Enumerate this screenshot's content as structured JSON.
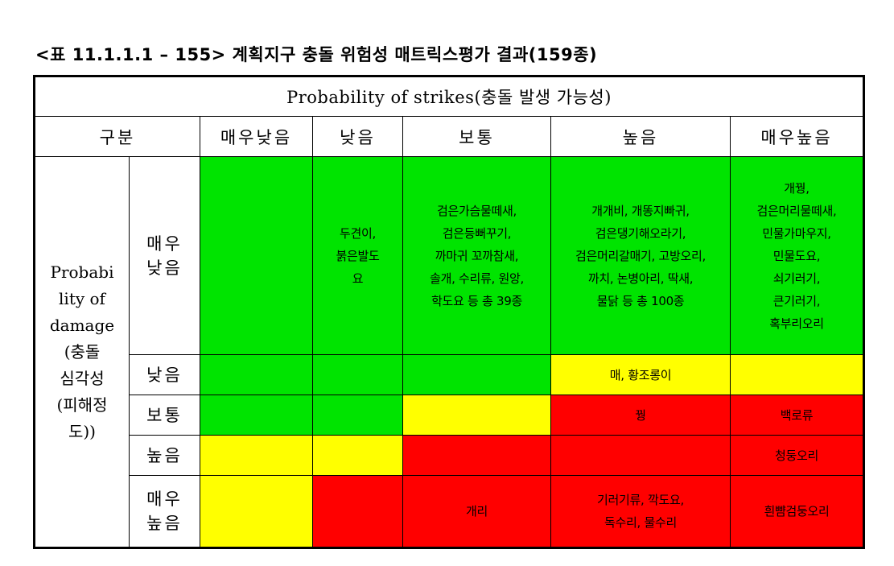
{
  "title": "<표 11.1.1.1 – 155> 계획지구 충돌 위험성 매트릭스평가 결과(159종)",
  "probability_header": "Probability of strikes(충돌 발생 가능성)",
  "corner_label": "구분",
  "columns": [
    "매우낮음",
    "낮음",
    "보통",
    "높음",
    "매우높음"
  ],
  "damage_header": "Probabi\nlity of\ndamage\n(충돌\n심각성\n(피해정\n도))",
  "rows": [
    {
      "label": "매우\n낮음",
      "cells": [
        {
          "text": "",
          "color": "#00e400"
        },
        {
          "text": "두견이,\n붉은발도\n요",
          "color": "#00e400"
        },
        {
          "text": "검은가슴물떼새,\n검은등뻐꾸기,\n까마귀 꼬까참새,\n솔개, 수리류, 원앙,\n학도요 등 총 39종",
          "color": "#00e400"
        },
        {
          "text": "개개비, 개똥지빠귀,\n검은댕기해오라기,\n검은머리갈매기, 고방오리,\n까치, 논병아리, 딱새,\n물닭 등 총 100종",
          "color": "#00e400"
        },
        {
          "text": "개꿩,\n검은머리물떼새,\n민물가마우지,\n민물도요,\n쇠기러기,\n큰기러기,\n혹부리오리",
          "color": "#00e400"
        }
      ]
    },
    {
      "label": "낮음",
      "cells": [
        {
          "text": "",
          "color": "#00e400"
        },
        {
          "text": "",
          "color": "#00e400"
        },
        {
          "text": "",
          "color": "#00e400"
        },
        {
          "text": "매, 황조롱이",
          "color": "#ffff00"
        },
        {
          "text": "",
          "color": "#ffff00"
        }
      ]
    },
    {
      "label": "보통",
      "cells": [
        {
          "text": "",
          "color": "#00e400"
        },
        {
          "text": "",
          "color": "#00e400"
        },
        {
          "text": "",
          "color": "#ffff00"
        },
        {
          "text": "꿩",
          "color": "#ff0000"
        },
        {
          "text": "백로류",
          "color": "#ff0000"
        }
      ]
    },
    {
      "label": "높음",
      "cells": [
        {
          "text": "",
          "color": "#ffff00"
        },
        {
          "text": "",
          "color": "#ffff00"
        },
        {
          "text": "",
          "color": "#ff0000"
        },
        {
          "text": "",
          "color": "#ff0000"
        },
        {
          "text": "청둥오리",
          "color": "#ff0000"
        }
      ]
    },
    {
      "label": "매우\n높음",
      "cells": [
        {
          "text": "",
          "color": "#ffff00"
        },
        {
          "text": "",
          "color": "#ff0000"
        },
        {
          "text": "개리",
          "color": "#ff0000"
        },
        {
          "text": "기러기류, 깍도요,\n독수리, 물수리",
          "color": "#ff0000"
        },
        {
          "text": "흰뺨검둥오리",
          "color": "#ff0000"
        }
      ]
    }
  ]
}
